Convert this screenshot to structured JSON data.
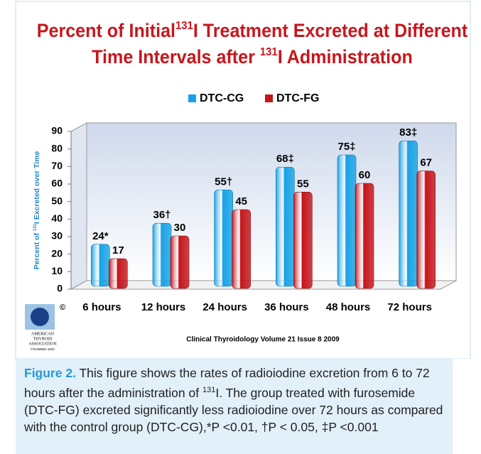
{
  "chart_data": {
    "type": "bar",
    "title": [
      [
        {
          "text": "Percent of Initial"
        },
        {
          "text": "131",
          "sup": true
        },
        {
          "text": "I Treatment Excreted at Different"
        }
      ],
      [
        {
          "text": "Time Intervals after "
        },
        {
          "text": "131",
          "sup": true
        },
        {
          "text": "I Administration"
        }
      ]
    ],
    "ylabel": [
      {
        "text": "Percent of "
      },
      {
        "text": "131",
        "sup": true
      },
      {
        "text": "I Excreted over Time"
      }
    ],
    "categories": [
      "6 hours",
      "12 hours",
      "24 hours",
      "36 hours",
      "48 hours",
      "72 hours"
    ],
    "series": [
      {
        "name": "DTC-CG",
        "color": "#17a3e6",
        "values": [
          24,
          36,
          55,
          68,
          75,
          83
        ],
        "value_labels": [
          "24*",
          "36†",
          "55†",
          "68‡",
          "75‡",
          "83‡"
        ]
      },
      {
        "name": "DTC-FG",
        "color": "#c5141a",
        "values": [
          17,
          30,
          45,
          55,
          60,
          67
        ]
      }
    ],
    "ylim": [
      0,
      90
    ],
    "yticks": [
      0,
      10,
      20,
      30,
      40,
      50,
      60,
      70,
      80,
      90
    ],
    "grid": false,
    "source": "Clinical Thyroidology Volume 21 Issue 8 2009",
    "logo": {
      "mark": "©",
      "name": [
        "AMERICAN",
        "THYROID",
        "ASSOCIATION"
      ],
      "founded": "FOUNDED 1923"
    }
  },
  "caption": [
    {
      "text": "Figure 2.",
      "style": "bold"
    },
    {
      "text": " This figure shows the rates of radioiodine excretion from 6 to 72 hours after the administration of "
    },
    {
      "text": "131",
      "sup": true
    },
    {
      "text": "I. The group treated with furosemide (DTC-FG) excreted significantly less radioiodine over 72 hours as compared with the control group (DTC-CG),*P <0.01, †P < 0.05, ‡P <0.001"
    }
  ]
}
